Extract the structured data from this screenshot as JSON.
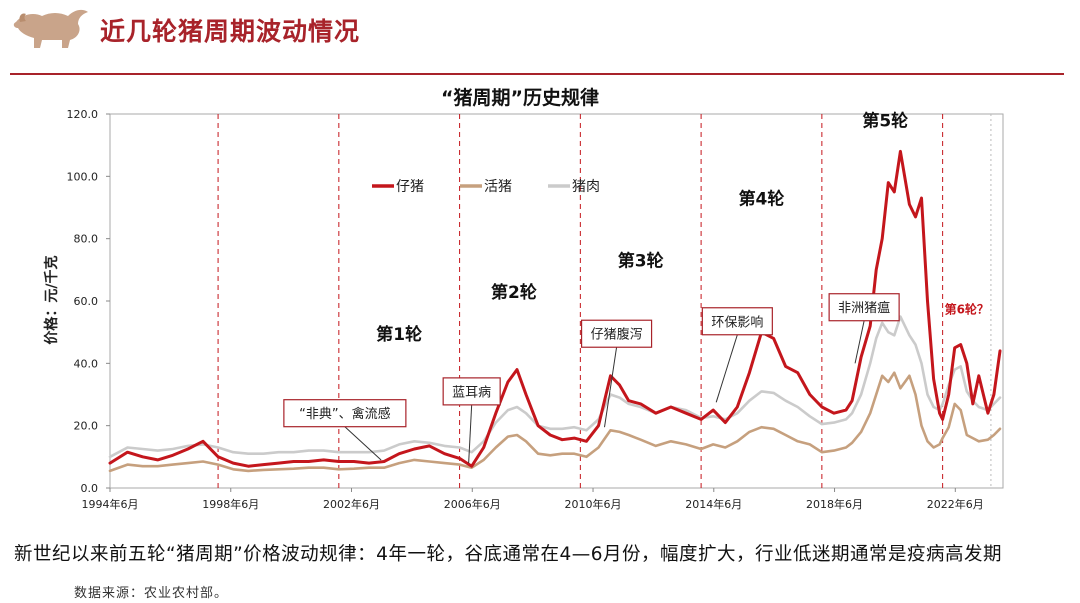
{
  "page": {
    "title": "近几轮猪周期波动情况",
    "summary": "新世纪以来前五轮“猪周期”价格波动规律：4年一轮，谷底通常在4—6月份，幅度扩大，行业低迷期通常是疫病高发期",
    "source": "数据来源：农业农村部。",
    "brand_color": "#a8232a"
  },
  "chart_data": {
    "type": "line",
    "title": "“猪周期”历史规律",
    "ylabel": "价格：元/千克",
    "xlabel": "",
    "ylim": [
      0,
      120
    ],
    "yticks": [
      "0.0",
      "20.0",
      "40.0",
      "60.0",
      "80.0",
      "100.0",
      "120.0"
    ],
    "xlim": [
      1994.42,
      2024.0
    ],
    "xticks": [
      {
        "x": 1994.42,
        "label": "1994年6月"
      },
      {
        "x": 1998.42,
        "label": "1998年6月"
      },
      {
        "x": 2002.42,
        "label": "2002年6月"
      },
      {
        "x": 2006.42,
        "label": "2006年6月"
      },
      {
        "x": 2010.42,
        "label": "2010年6月"
      },
      {
        "x": 2014.42,
        "label": "2014年6月"
      },
      {
        "x": 2018.42,
        "label": "2018年6月"
      },
      {
        "x": 2022.42,
        "label": "2022年6月"
      }
    ],
    "grid": false,
    "cycle_boundaries": [
      1998.0,
      2002.0,
      2006.0,
      2010.0,
      2014.0,
      2018.0,
      2022.0
    ],
    "current_marker": 2023.6,
    "cycle_labels": [
      {
        "text": "第1轮",
        "x": 2004.0,
        "y": 47.5
      },
      {
        "text": "第2轮",
        "x": 2007.8,
        "y": 61.0
      },
      {
        "text": "第3轮",
        "x": 2012.0,
        "y": 71.0
      },
      {
        "text": "第4轮",
        "x": 2016.0,
        "y": 91.0
      },
      {
        "text": "第5轮",
        "x": 2020.1,
        "y": 116.0
      },
      {
        "text": "第6轮？",
        "x": 2022.8,
        "y": 56.0,
        "highlight": true
      }
    ],
    "annotations": [
      {
        "text": "“非典”、禽流感",
        "box": [
          2002.2,
          24.0
        ],
        "target": [
          2003.4,
          9.0
        ]
      },
      {
        "text": "蓝耳病",
        "box": [
          2006.4,
          31.0
        ],
        "target": [
          2006.3,
          8.0
        ]
      },
      {
        "text": "仔猪腹泻",
        "box": [
          2011.2,
          49.5
        ],
        "target": [
          2010.8,
          19.5
        ]
      },
      {
        "text": "环保影响",
        "box": [
          2015.2,
          53.5
        ],
        "target": [
          2014.5,
          27.5
        ]
      },
      {
        "text": "非洲猪瘟",
        "box": [
          2019.4,
          58.0
        ],
        "target": [
          2019.1,
          40.0
        ]
      }
    ],
    "legend": {
      "position": "top-left"
    },
    "series": [
      {
        "name": "仔猪",
        "color": "#c4161c",
        "x": [
          1994.42,
          1995.0,
          1995.5,
          1996.0,
          1996.5,
          1997.0,
          1997.5,
          1998.0,
          1998.5,
          1999.0,
          1999.5,
          2000.0,
          2000.5,
          2001.0,
          2001.5,
          2002.0,
          2002.5,
          2003.0,
          2003.5,
          2004.0,
          2004.5,
          2005.0,
          2005.5,
          2006.0,
          2006.4,
          2006.8,
          2007.2,
          2007.6,
          2007.9,
          2008.2,
          2008.6,
          2009.0,
          2009.4,
          2009.8,
          2010.2,
          2010.6,
          2011.0,
          2011.3,
          2011.6,
          2012.0,
          2012.5,
          2013.0,
          2013.5,
          2014.0,
          2014.4,
          2014.8,
          2015.2,
          2015.6,
          2016.0,
          2016.4,
          2016.8,
          2017.2,
          2017.6,
          2018.0,
          2018.4,
          2018.8,
          2019.0,
          2019.3,
          2019.6,
          2019.8,
          2020.0,
          2020.2,
          2020.4,
          2020.6,
          2020.9,
          2021.1,
          2021.3,
          2021.5,
          2021.7,
          2021.9,
          2022.0,
          2022.2,
          2022.4,
          2022.6,
          2022.8,
          2023.0,
          2023.2,
          2023.5,
          2023.7,
          2023.9
        ],
        "values": [
          8.0,
          11.5,
          10.0,
          9.0,
          10.5,
          12.5,
          15.0,
          10.0,
          8.0,
          7.0,
          7.5,
          8.0,
          8.5,
          8.5,
          9.0,
          8.5,
          8.5,
          8.0,
          8.5,
          11.0,
          12.5,
          13.5,
          11.0,
          9.5,
          7.0,
          13.0,
          24.0,
          34.0,
          38.0,
          30.0,
          20.0,
          17.0,
          15.5,
          16.0,
          15.0,
          20.0,
          36.0,
          33.0,
          28.0,
          27.0,
          24.0,
          26.0,
          24.0,
          22.0,
          25.0,
          21.0,
          26.0,
          37.0,
          50.0,
          48.0,
          39.0,
          37.0,
          30.0,
          26.0,
          24.0,
          25.0,
          28.0,
          42.0,
          52.0,
          70.0,
          80.0,
          98.0,
          95.0,
          108.0,
          91.0,
          87.0,
          93.0,
          60.0,
          35.0,
          24.0,
          22.0,
          30.0,
          45.0,
          46.0,
          40.0,
          27.0,
          36.0,
          24.0,
          30.0,
          44.0
        ]
      },
      {
        "name": "活猪",
        "color": "#c6a07e",
        "x": [
          1994.42,
          1995.0,
          1995.5,
          1996.0,
          1996.5,
          1997.0,
          1997.5,
          1998.0,
          1998.5,
          1999.0,
          1999.5,
          2000.0,
          2000.5,
          2001.0,
          2001.5,
          2002.0,
          2002.5,
          2003.0,
          2003.5,
          2004.0,
          2004.5,
          2005.0,
          2005.5,
          2006.0,
          2006.4,
          2006.8,
          2007.2,
          2007.6,
          2007.9,
          2008.2,
          2008.6,
          2009.0,
          2009.4,
          2009.8,
          2010.2,
          2010.6,
          2011.0,
          2011.3,
          2011.6,
          2012.0,
          2012.5,
          2013.0,
          2013.5,
          2014.0,
          2014.4,
          2014.8,
          2015.2,
          2015.6,
          2016.0,
          2016.4,
          2016.8,
          2017.2,
          2017.6,
          2018.0,
          2018.4,
          2018.8,
          2019.0,
          2019.3,
          2019.6,
          2019.8,
          2020.0,
          2020.2,
          2020.4,
          2020.6,
          2020.9,
          2021.1,
          2021.3,
          2021.5,
          2021.7,
          2021.9,
          2022.0,
          2022.2,
          2022.4,
          2022.6,
          2022.8,
          2023.0,
          2023.2,
          2023.5,
          2023.7,
          2023.9
        ],
        "values": [
          5.5,
          7.5,
          7.0,
          7.0,
          7.5,
          8.0,
          8.5,
          7.5,
          6.0,
          5.5,
          5.8,
          6.0,
          6.2,
          6.5,
          6.5,
          6.0,
          6.2,
          6.5,
          6.5,
          8.0,
          9.0,
          8.5,
          8.0,
          7.5,
          6.5,
          9.0,
          13.0,
          16.5,
          17.0,
          15.0,
          11.0,
          10.5,
          11.0,
          11.0,
          10.0,
          13.0,
          18.5,
          18.0,
          17.0,
          15.5,
          13.5,
          15.0,
          14.0,
          12.5,
          14.0,
          13.0,
          15.0,
          18.0,
          19.5,
          19.0,
          17.0,
          15.0,
          14.0,
          11.5,
          12.0,
          13.0,
          14.5,
          18.0,
          24.0,
          30.0,
          36.0,
          34.0,
          37.0,
          32.0,
          36.0,
          30.0,
          20.0,
          15.0,
          13.0,
          14.0,
          16.0,
          19.5,
          27.0,
          25.0,
          17.0,
          16.0,
          15.0,
          15.5,
          17.0,
          19.0
        ]
      },
      {
        "name": "猪肉",
        "color": "#cbcbcb",
        "x": [
          1994.42,
          1995.0,
          1995.5,
          1996.0,
          1996.5,
          1997.0,
          1997.5,
          1998.0,
          1998.5,
          1999.0,
          1999.5,
          2000.0,
          2000.5,
          2001.0,
          2001.5,
          2002.0,
          2002.5,
          2003.0,
          2003.5,
          2004.0,
          2004.5,
          2005.0,
          2005.5,
          2006.0,
          2006.4,
          2006.8,
          2007.2,
          2007.6,
          2007.9,
          2008.2,
          2008.6,
          2009.0,
          2009.4,
          2009.8,
          2010.2,
          2010.6,
          2011.0,
          2011.3,
          2011.6,
          2012.0,
          2012.5,
          2013.0,
          2013.5,
          2014.0,
          2014.4,
          2014.8,
          2015.2,
          2015.6,
          2016.0,
          2016.4,
          2016.8,
          2017.2,
          2017.6,
          2018.0,
          2018.4,
          2018.8,
          2019.0,
          2019.3,
          2019.6,
          2019.8,
          2020.0,
          2020.2,
          2020.4,
          2020.6,
          2020.9,
          2021.1,
          2021.3,
          2021.5,
          2021.7,
          2021.9,
          2022.0,
          2022.2,
          2022.4,
          2022.6,
          2022.8,
          2023.0,
          2023.2,
          2023.5,
          2023.7,
          2023.9
        ],
        "values": [
          10.0,
          13.0,
          12.5,
          12.0,
          12.5,
          13.5,
          14.0,
          13.0,
          11.5,
          11.0,
          11.0,
          11.5,
          11.5,
          12.0,
          12.0,
          11.5,
          11.5,
          11.5,
          12.0,
          14.0,
          15.0,
          14.5,
          13.5,
          13.0,
          11.5,
          15.0,
          21.0,
          25.0,
          26.0,
          24.0,
          20.0,
          19.0,
          19.0,
          19.5,
          18.5,
          22.0,
          30.0,
          29.0,
          27.0,
          26.0,
          24.0,
          26.0,
          25.0,
          22.5,
          23.0,
          22.0,
          24.0,
          28.0,
          31.0,
          30.5,
          28.0,
          26.0,
          23.0,
          20.5,
          21.0,
          22.0,
          24.0,
          30.0,
          40.0,
          48.0,
          53.0,
          50.0,
          49.0,
          55.0,
          49.0,
          46.0,
          40.0,
          30.0,
          26.0,
          25.0,
          27.0,
          33.0,
          38.0,
          39.0,
          31.0,
          28.0,
          26.0,
          25.0,
          27.0,
          29.0
        ]
      }
    ]
  }
}
